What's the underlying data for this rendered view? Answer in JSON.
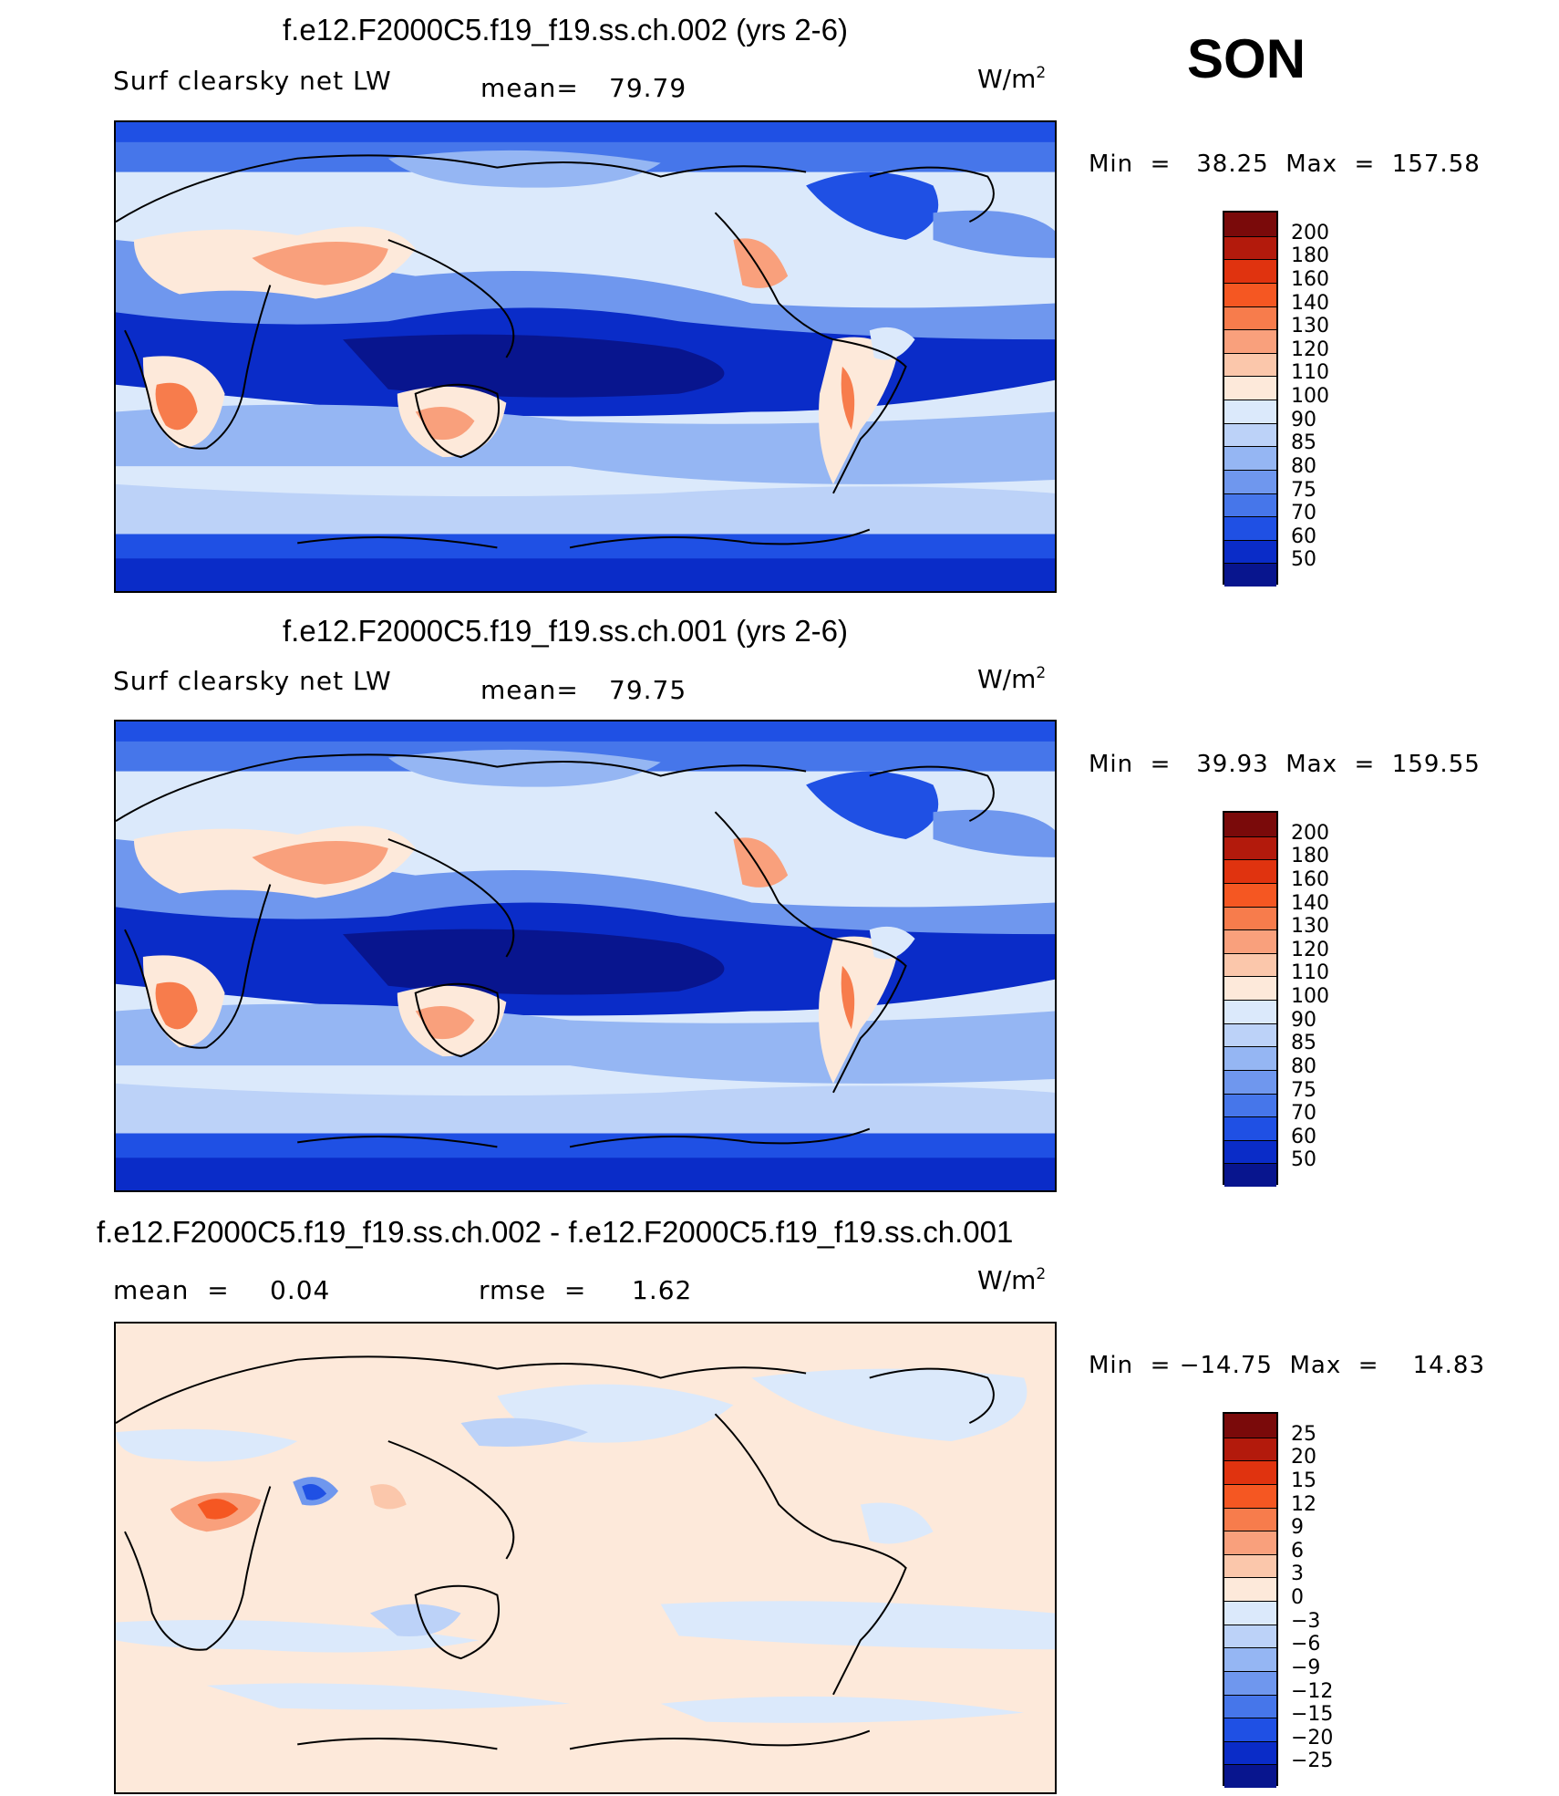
{
  "season": "SON",
  "panels": [
    {
      "title": "f.e12.F2000C5.f19_f19.ss.ch.002 (yrs 2-6)",
      "variable": "Surf clearsky net LW",
      "stat1_label": "mean=",
      "stat1_value": "79.79",
      "units_base": "W/m",
      "units_exp": "2",
      "minmax": "Min  =   38.25  Max  =  157.58",
      "kind": "abs"
    },
    {
      "title": "f.e12.F2000C5.f19_f19.ss.ch.001 (yrs 2-6)",
      "variable": "Surf clearsky net LW",
      "stat1_label": "mean=",
      "stat1_value": "79.75",
      "units_base": "W/m",
      "units_exp": "2",
      "minmax": "Min  =   39.93  Max  =  159.55",
      "kind": "abs"
    },
    {
      "title": "f.e12.F2000C5.f19_f19.ss.ch.002 - f.e12.F2000C5.f19_f19.ss.ch.001",
      "stat1_label": "mean  =",
      "stat1_value": "0.04",
      "stat2_label": "rmse  =",
      "stat2_value": "1.62",
      "units_base": "W/m",
      "units_exp": "2",
      "minmax": "Min  = −14.75  Max  =    14.83",
      "kind": "diff"
    }
  ],
  "colorbars": {
    "abs": {
      "colors": [
        "#7a0a0a",
        "#b31a0c",
        "#e0330f",
        "#f55722",
        "#f77c4c",
        "#f9a07c",
        "#fbc7ab",
        "#fde9da",
        "#dbe9fb",
        "#bcd2f8",
        "#95b6f3",
        "#6f97ee",
        "#4676ea",
        "#1f50e4",
        "#0a2cc8",
        "#08158e"
      ],
      "labels": [
        "200",
        "180",
        "160",
        "140",
        "130",
        "120",
        "110",
        "100",
        "90",
        "85",
        "80",
        "75",
        "70",
        "60",
        "50"
      ]
    },
    "diff": {
      "colors": [
        "#7a0a0a",
        "#b31a0c",
        "#e0330f",
        "#f55722",
        "#f77c4c",
        "#f9a07c",
        "#fbc7ab",
        "#fde9da",
        "#dbe9fb",
        "#bcd2f8",
        "#95b6f3",
        "#6f97ee",
        "#4676ea",
        "#1f50e4",
        "#0a2cc8",
        "#08158e"
      ],
      "labels": [
        "25",
        "20",
        "15",
        "12",
        "9",
        "6",
        "3",
        "0",
        "−3",
        "−6",
        "−9",
        "−12",
        "−15",
        "−20",
        "−25"
      ]
    }
  }
}
